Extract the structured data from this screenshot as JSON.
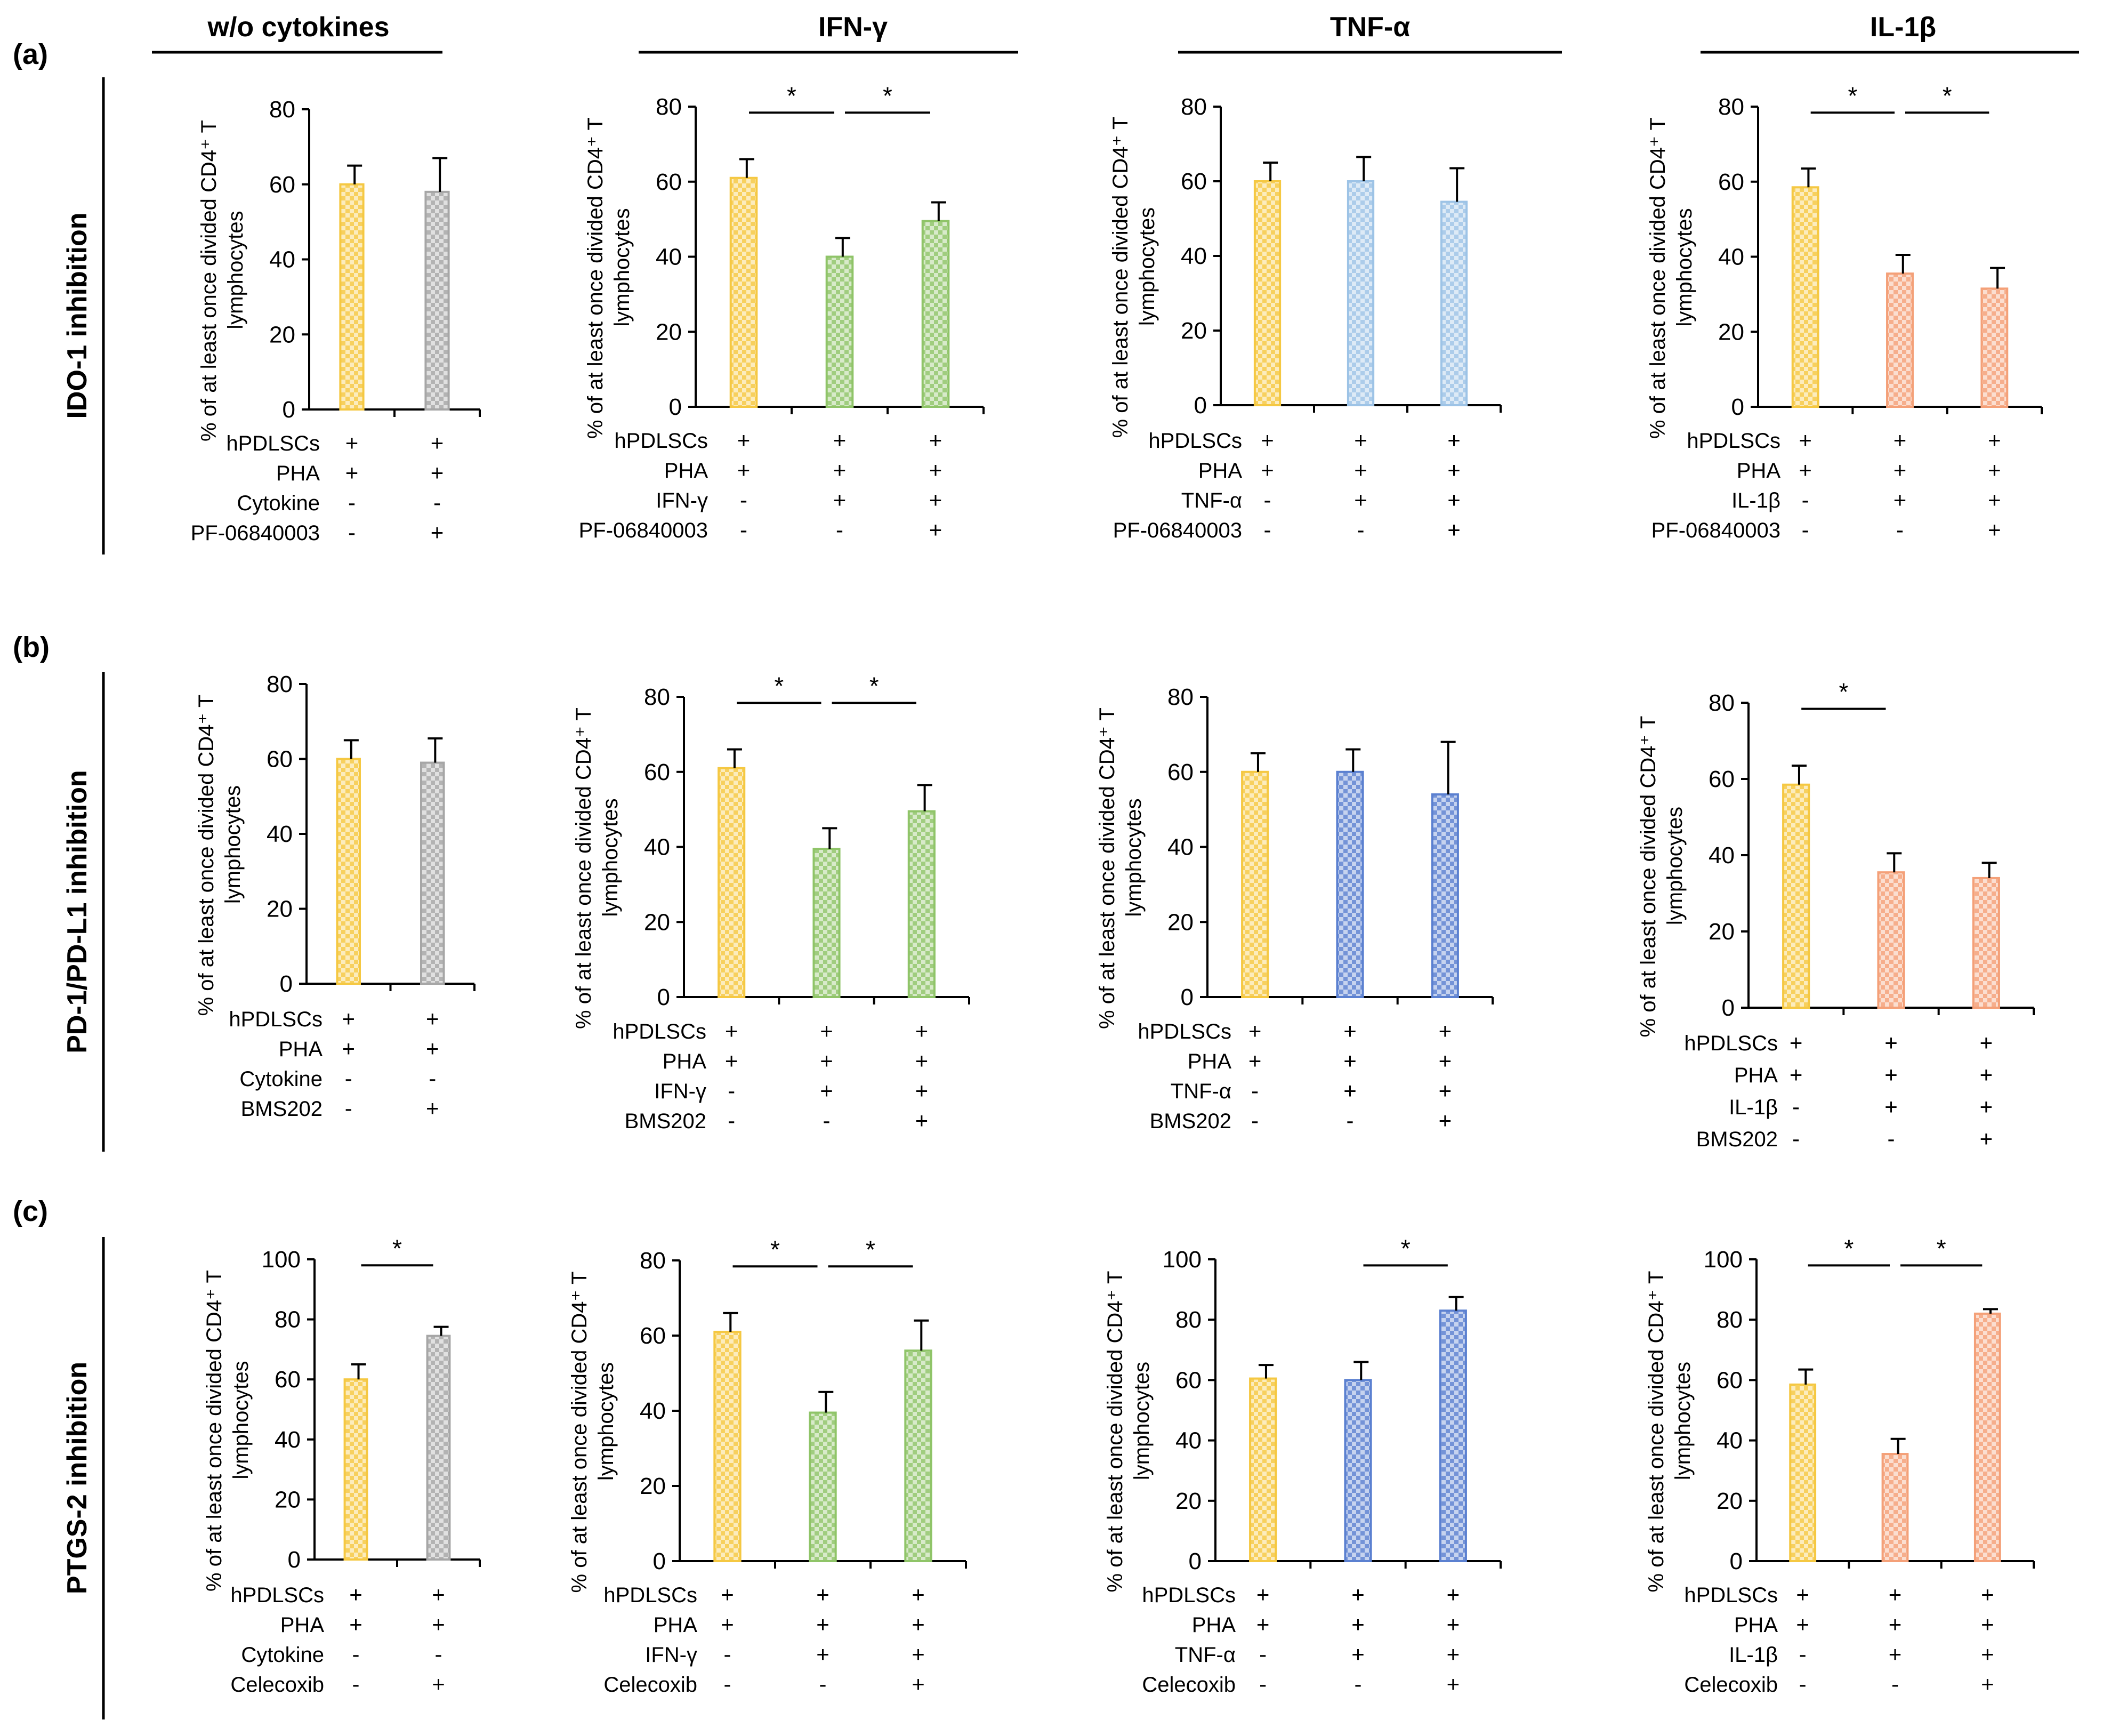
{
  "column_titles": [
    "w/o cytokines",
    "IFN-γ",
    "TNF-α",
    "IL-1β"
  ],
  "panel_letters": [
    "(a)",
    "(b)",
    "(c)"
  ],
  "row_titles": [
    "IDO-1 inhibition",
    "PD-1/PD-L1 inhibition",
    "PTGS-2 inhibition"
  ],
  "colors": {
    "hPDLSC": "#f5c842",
    "control": "#a6a6a6",
    "IFN": "#8fc468",
    "TNF_light": "#9dc3e6",
    "TNF_dark": "#5b80d0",
    "IL1": "#f4a078"
  },
  "chart_data": [
    {
      "id": "a1",
      "type": "bar",
      "title": "w/o cytokines",
      "ylabel_line1": "% of at least once divided CD4⁺ T",
      "ylabel_line2": "lymphocytes",
      "ylim": [
        0,
        80
      ],
      "yticks": [
        "0",
        "20",
        "40",
        "60",
        "80"
      ],
      "categories": [
        "1",
        "2"
      ],
      "values": [
        60,
        58
      ],
      "errors": [
        5,
        9
      ],
      "bar_colors": [
        "hPDLSC",
        "control"
      ],
      "conditions": [
        {
          "label": "hPDLSCs",
          "signs": [
            "+",
            "+"
          ]
        },
        {
          "label": "PHA",
          "signs": [
            "+",
            "+"
          ]
        },
        {
          "label": "Cytokine",
          "signs": [
            "-",
            "-"
          ]
        },
        {
          "label": "PF-06840003",
          "signs": [
            "-",
            "+"
          ]
        }
      ],
      "significance": []
    },
    {
      "id": "a2",
      "type": "bar",
      "title": "IFN-γ",
      "ylabel_line1": "% of at least once divided CD4⁺ T",
      "ylabel_line2": "lymphocytes",
      "ylim": [
        0,
        80
      ],
      "yticks": [
        "0",
        "20",
        "40",
        "60",
        "80"
      ],
      "categories": [
        "1",
        "2",
        "3"
      ],
      "values": [
        61,
        40,
        49.5
      ],
      "errors": [
        5,
        5,
        5
      ],
      "bar_colors": [
        "hPDLSC",
        "IFN",
        "IFN"
      ],
      "conditions": [
        {
          "label": "hPDLSCs",
          "signs": [
            "+",
            "+",
            "+"
          ]
        },
        {
          "label": "PHA",
          "signs": [
            "+",
            "+",
            "+"
          ]
        },
        {
          "label": "IFN-γ",
          "signs": [
            "-",
            "+",
            "+"
          ]
        },
        {
          "label": "PF-06840003",
          "signs": [
            "-",
            "-",
            "+"
          ]
        }
      ],
      "significance": [
        {
          "from": 0,
          "to": 1,
          "label": "*"
        },
        {
          "from": 1,
          "to": 2,
          "label": "*"
        }
      ]
    },
    {
      "id": "a3",
      "type": "bar",
      "title": "TNF-α",
      "ylabel_line1": "% of at least once divided CD4⁺ T",
      "ylabel_line2": "lymphocytes",
      "ylim": [
        0,
        80
      ],
      "yticks": [
        "0",
        "20",
        "40",
        "60",
        "80"
      ],
      "categories": [
        "1",
        "2",
        "3"
      ],
      "values": [
        60,
        60,
        54.5
      ],
      "errors": [
        5,
        6.5,
        9
      ],
      "bar_colors": [
        "hPDLSC",
        "TNF_light",
        "TNF_light"
      ],
      "conditions": [
        {
          "label": "hPDLSCs",
          "signs": [
            "+",
            "+",
            "+"
          ]
        },
        {
          "label": "PHA",
          "signs": [
            "+",
            "+",
            "+"
          ]
        },
        {
          "label": "TNF-α",
          "signs": [
            "-",
            "+",
            "+"
          ]
        },
        {
          "label": "PF-06840003",
          "signs": [
            "-",
            "-",
            "+"
          ]
        }
      ],
      "significance": []
    },
    {
      "id": "a4",
      "type": "bar",
      "title": "IL-1β",
      "ylabel_line1": "% of at least once divided CD4⁺ T",
      "ylabel_line2": "lymphocytes",
      "ylim": [
        0,
        80
      ],
      "yticks": [
        "0",
        "20",
        "40",
        "60",
        "80"
      ],
      "categories": [
        "1",
        "2",
        "3"
      ],
      "values": [
        58.5,
        35.5,
        31.5
      ],
      "errors": [
        5,
        5,
        5.5
      ],
      "bar_colors": [
        "hPDLSC",
        "IL1",
        "IL1"
      ],
      "conditions": [
        {
          "label": "hPDLSCs",
          "signs": [
            "+",
            "+",
            "+"
          ]
        },
        {
          "label": "PHA",
          "signs": [
            "+",
            "+",
            "+"
          ]
        },
        {
          "label": "IL-1β",
          "signs": [
            "-",
            "+",
            "+"
          ]
        },
        {
          "label": "PF-06840003",
          "signs": [
            "-",
            "-",
            "+"
          ]
        }
      ],
      "significance": [
        {
          "from": 0,
          "to": 1,
          "label": "*"
        },
        {
          "from": 1,
          "to": 2,
          "label": "*"
        }
      ]
    },
    {
      "id": "b1",
      "type": "bar",
      "title": "",
      "ylabel_line1": "% of at least once divided CD4⁺ T",
      "ylabel_line2": "lymphocytes",
      "ylim": [
        0,
        80
      ],
      "yticks": [
        "0",
        "20",
        "40",
        "60",
        "80"
      ],
      "categories": [
        "1",
        "2"
      ],
      "values": [
        60,
        59
      ],
      "errors": [
        5,
        6.5
      ],
      "bar_colors": [
        "hPDLSC",
        "control"
      ],
      "conditions": [
        {
          "label": "hPDLSCs",
          "signs": [
            "+",
            "+"
          ]
        },
        {
          "label": "PHA",
          "signs": [
            "+",
            "+"
          ]
        },
        {
          "label": "Cytokine",
          "signs": [
            "-",
            "-"
          ]
        },
        {
          "label": "BMS202",
          "signs": [
            "-",
            "+"
          ]
        }
      ],
      "significance": []
    },
    {
      "id": "b2",
      "type": "bar",
      "title": "",
      "ylabel_line1": "% of at least once divided CD4⁺ T",
      "ylabel_line2": "lymphocytes",
      "ylim": [
        0,
        80
      ],
      "yticks": [
        "0",
        "20",
        "40",
        "60",
        "80"
      ],
      "categories": [
        "1",
        "2",
        "3"
      ],
      "values": [
        61,
        39.5,
        49.5
      ],
      "errors": [
        5,
        5.5,
        7
      ],
      "bar_colors": [
        "hPDLSC",
        "IFN",
        "IFN"
      ],
      "conditions": [
        {
          "label": "hPDLSCs",
          "signs": [
            "+",
            "+",
            "+"
          ]
        },
        {
          "label": "PHA",
          "signs": [
            "+",
            "+",
            "+"
          ]
        },
        {
          "label": "IFN-γ",
          "signs": [
            "-",
            "+",
            "+"
          ]
        },
        {
          "label": "BMS202",
          "signs": [
            "-",
            "-",
            "+"
          ]
        }
      ],
      "significance": [
        {
          "from": 0,
          "to": 1,
          "label": "*"
        },
        {
          "from": 1,
          "to": 2,
          "label": "*"
        }
      ]
    },
    {
      "id": "b3",
      "type": "bar",
      "title": "",
      "ylabel_line1": "% of at least once divided CD4⁺ T",
      "ylabel_line2": "lymphocytes",
      "ylim": [
        0,
        80
      ],
      "yticks": [
        "0",
        "20",
        "40",
        "60",
        "80"
      ],
      "categories": [
        "1",
        "2",
        "3"
      ],
      "values": [
        60,
        60,
        54
      ],
      "errors": [
        5,
        6,
        14
      ],
      "bar_colors": [
        "hPDLSC",
        "TNF_dark",
        "TNF_dark"
      ],
      "conditions": [
        {
          "label": "hPDLSCs",
          "signs": [
            "+",
            "+",
            "+"
          ]
        },
        {
          "label": "PHA",
          "signs": [
            "+",
            "+",
            "+"
          ]
        },
        {
          "label": "TNF-α",
          "signs": [
            "-",
            "+",
            "+"
          ]
        },
        {
          "label": "BMS202",
          "signs": [
            "-",
            "-",
            "+"
          ]
        }
      ],
      "significance": []
    },
    {
      "id": "b4",
      "type": "bar",
      "title": "",
      "ylabel_line1": "% of at least once divided CD4⁺ T",
      "ylabel_line2": "lymphocytes",
      "ylim": [
        0,
        80
      ],
      "yticks": [
        "0",
        "20",
        "40",
        "60",
        "80"
      ],
      "categories": [
        "1",
        "2",
        "3"
      ],
      "values": [
        58.5,
        35.5,
        34
      ],
      "errors": [
        5,
        5,
        4
      ],
      "bar_colors": [
        "hPDLSC",
        "IL1",
        "IL1"
      ],
      "conditions": [
        {
          "label": "hPDLSCs",
          "signs": [
            "+",
            "+",
            "+"
          ]
        },
        {
          "label": "PHA",
          "signs": [
            "+",
            "+",
            "+"
          ]
        },
        {
          "label": "IL-1β",
          "signs": [
            "-",
            "+",
            "+"
          ]
        },
        {
          "label": "BMS202",
          "signs": [
            "-",
            "-",
            "+"
          ]
        }
      ],
      "significance": [
        {
          "from": 0,
          "to": 1,
          "label": "*"
        }
      ]
    },
    {
      "id": "c1",
      "type": "bar",
      "title": "",
      "ylabel_line1": "% of at least once divided CD4⁺ T",
      "ylabel_line2": "lymphocytes",
      "ylim": [
        0,
        100
      ],
      "yticks": [
        "0",
        "20",
        "40",
        "60",
        "80",
        "100"
      ],
      "categories": [
        "1",
        "2"
      ],
      "values": [
        60,
        74.5
      ],
      "errors": [
        5,
        3
      ],
      "bar_colors": [
        "hPDLSC",
        "control"
      ],
      "conditions": [
        {
          "label": "hPDLSCs",
          "signs": [
            "+",
            "+"
          ]
        },
        {
          "label": "PHA",
          "signs": [
            "+",
            "+"
          ]
        },
        {
          "label": "Cytokine",
          "signs": [
            "-",
            "-"
          ]
        },
        {
          "label": "Celecoxib",
          "signs": [
            "-",
            "+"
          ]
        }
      ],
      "significance": [
        {
          "from": 0,
          "to": 1,
          "label": "*"
        }
      ]
    },
    {
      "id": "c2",
      "type": "bar",
      "title": "",
      "ylabel_line1": "% of at least once divided CD4⁺ T",
      "ylabel_line2": "lymphocytes",
      "ylim": [
        0,
        80
      ],
      "yticks": [
        "0",
        "20",
        "40",
        "60",
        "80"
      ],
      "categories": [
        "1",
        "2",
        "3"
      ],
      "values": [
        61,
        39.5,
        56
      ],
      "errors": [
        5,
        5.5,
        8
      ],
      "bar_colors": [
        "hPDLSC",
        "IFN",
        "IFN"
      ],
      "conditions": [
        {
          "label": "hPDLSCs",
          "signs": [
            "+",
            "+",
            "+"
          ]
        },
        {
          "label": "PHA",
          "signs": [
            "+",
            "+",
            "+"
          ]
        },
        {
          "label": "IFN-γ",
          "signs": [
            "-",
            "+",
            "+"
          ]
        },
        {
          "label": "Celecoxib",
          "signs": [
            "-",
            "-",
            "+"
          ]
        }
      ],
      "significance": [
        {
          "from": 0,
          "to": 1,
          "label": "*"
        },
        {
          "from": 1,
          "to": 2,
          "label": "*"
        }
      ]
    },
    {
      "id": "c3",
      "type": "bar",
      "title": "",
      "ylabel_line1": "% of at least once divided CD4⁺ T",
      "ylabel_line2": "lymphocytes",
      "ylim": [
        0,
        100
      ],
      "yticks": [
        "0",
        "20",
        "40",
        "60",
        "80",
        "100"
      ],
      "categories": [
        "1",
        "2",
        "3"
      ],
      "values": [
        60.5,
        60,
        83
      ],
      "errors": [
        4.5,
        6,
        4.5
      ],
      "bar_colors": [
        "hPDLSC",
        "TNF_dark",
        "TNF_dark"
      ],
      "conditions": [
        {
          "label": "hPDLSCs",
          "signs": [
            "+",
            "+",
            "+"
          ]
        },
        {
          "label": "PHA",
          "signs": [
            "+",
            "+",
            "+"
          ]
        },
        {
          "label": "TNF-α",
          "signs": [
            "-",
            "+",
            "+"
          ]
        },
        {
          "label": "Celecoxib",
          "signs": [
            "-",
            "-",
            "+"
          ]
        }
      ],
      "significance": [
        {
          "from": 1,
          "to": 2,
          "label": "*"
        }
      ]
    },
    {
      "id": "c4",
      "type": "bar",
      "title": "",
      "ylabel_line1": "% of at least once divided CD4⁺ T",
      "ylabel_line2": "lymphocytes",
      "ylim": [
        0,
        100
      ],
      "yticks": [
        "0",
        "20",
        "40",
        "60",
        "80",
        "100"
      ],
      "categories": [
        "1",
        "2",
        "3"
      ],
      "values": [
        58.5,
        35.5,
        82
      ],
      "errors": [
        5,
        5,
        1.5
      ],
      "bar_colors": [
        "hPDLSC",
        "IL1",
        "IL1"
      ],
      "conditions": [
        {
          "label": "hPDLSCs",
          "signs": [
            "+",
            "+",
            "+"
          ]
        },
        {
          "label": "PHA",
          "signs": [
            "+",
            "+",
            "+"
          ]
        },
        {
          "label": "IL-1β",
          "signs": [
            "-",
            "+",
            "+"
          ]
        },
        {
          "label": "Celecoxib",
          "signs": [
            "-",
            "-",
            "+"
          ]
        }
      ],
      "significance": [
        {
          "from": 0,
          "to": 1,
          "label": "*"
        },
        {
          "from": 1,
          "to": 2,
          "label": "*"
        }
      ]
    }
  ]
}
